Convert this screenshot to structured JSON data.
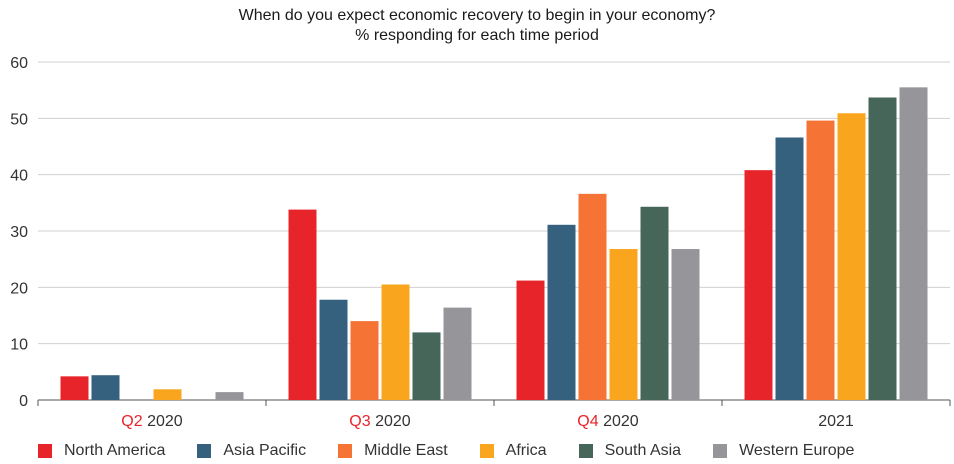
{
  "chart_data": {
    "type": "bar",
    "title": "When do you expect economic recovery to begin in your economy?",
    "subtitle": "% responding for each time period",
    "categories": [
      {
        "prefix": "Q2",
        "year": "2020"
      },
      {
        "prefix": "Q3",
        "year": "2020"
      },
      {
        "prefix": "Q4",
        "year": "2020"
      },
      {
        "prefix": "",
        "year": "2021"
      }
    ],
    "series": [
      {
        "name": "North America",
        "color": "#e8242b",
        "values": [
          4.2,
          33.8,
          21.2,
          40.8
        ]
      },
      {
        "name": "Asia Pacific",
        "color": "#35617e",
        "values": [
          4.4,
          17.8,
          31.1,
          46.6
        ]
      },
      {
        "name": "Middle East",
        "color": "#f47335",
        "values": [
          0,
          14.0,
          36.6,
          49.6
        ]
      },
      {
        "name": "Africa",
        "color": "#f9a61e",
        "values": [
          1.9,
          20.5,
          26.8,
          50.9
        ]
      },
      {
        "name": "South Asia",
        "color": "#47665a",
        "values": [
          0,
          12.0,
          34.3,
          53.7
        ]
      },
      {
        "name": "Western Europe",
        "color": "#96969a",
        "values": [
          1.4,
          16.4,
          26.8,
          55.5
        ]
      }
    ],
    "ylim": [
      0,
      60
    ],
    "yticks": [
      "0",
      "10",
      "20",
      "30",
      "40",
      "50",
      "60"
    ],
    "grid": true,
    "legend_position": "bottom"
  }
}
